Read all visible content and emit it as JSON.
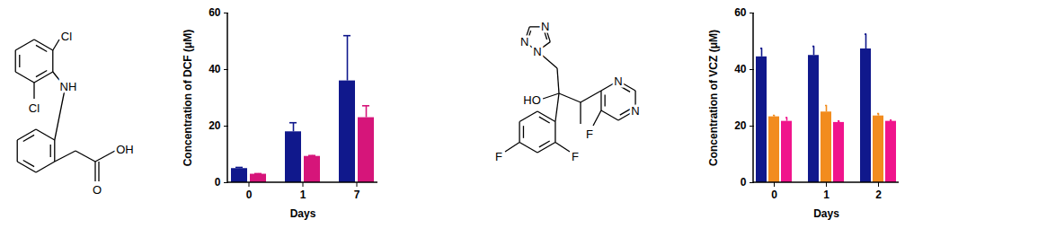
{
  "structures": [
    {
      "atom_labels": [
        "Cl",
        "NH",
        "Cl",
        "OH",
        "O"
      ]
    },
    {
      "atom_labels": [
        "N",
        "N",
        "N",
        "HO",
        "N",
        "N",
        "F",
        "F",
        "F"
      ]
    }
  ],
  "chart_data": [
    {
      "type": "bar",
      "xlabel": "Days",
      "ylabel": "Concentration of DCF (μM)",
      "categories": [
        "0",
        "1",
        "7"
      ],
      "series": [
        {
          "color": "#10188c",
          "values": [
            5,
            18,
            36
          ],
          "errors": [
            0.4,
            3.2,
            16
          ]
        },
        {
          "color": "#d6157a",
          "values": [
            3,
            9.3,
            23
          ],
          "errors": [
            0.2,
            0.3,
            4.2
          ]
        }
      ],
      "ylim": [
        0,
        60
      ],
      "yticks": [
        0,
        20,
        40,
        60
      ]
    },
    {
      "type": "bar",
      "xlabel": "Days",
      "ylabel": "Concentration of VCZ (μM)",
      "categories": [
        "0",
        "1",
        "2"
      ],
      "series": [
        {
          "color": "#10188c",
          "values": [
            44.5,
            45,
            47.3
          ],
          "errors": [
            3,
            3.2,
            5.2
          ]
        },
        {
          "color": "#f28c1e",
          "values": [
            23.3,
            25,
            23.6
          ],
          "errors": [
            0.5,
            2.3,
            0.8
          ]
        },
        {
          "color": "#f0148c",
          "values": [
            21.7,
            21.3,
            21.7
          ],
          "errors": [
            1.3,
            0.5,
            0.4
          ]
        }
      ],
      "ylim": [
        0,
        60
      ],
      "yticks": [
        0,
        20,
        40,
        60
      ]
    }
  ]
}
